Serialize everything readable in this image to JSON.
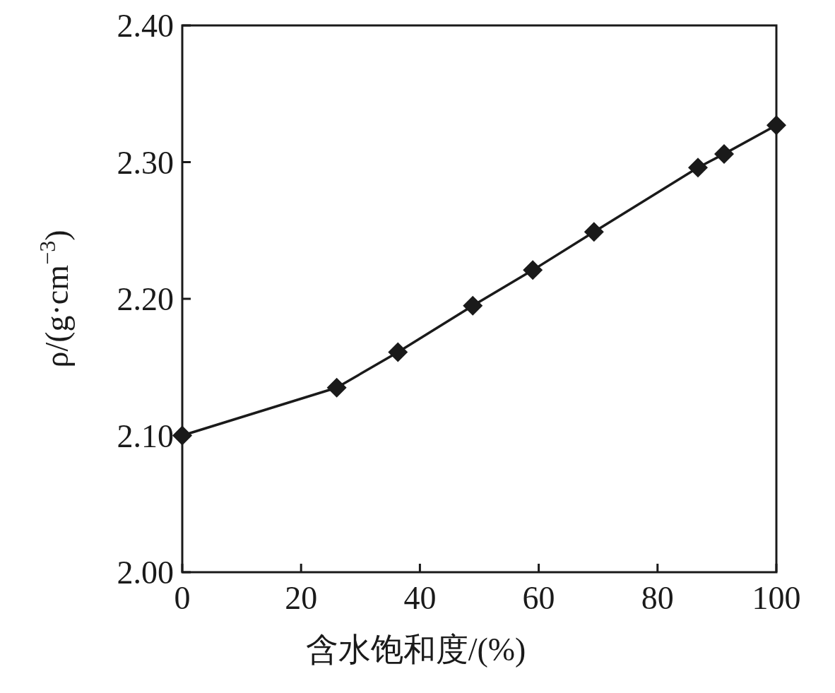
{
  "chart_data": {
    "type": "line",
    "xlabel": "含水饱和度/(%)",
    "ylabel": "ρ/(g·cm$^{−3}$)",
    "x": [
      0,
      26,
      36.3,
      48.9,
      59,
      69.3,
      86.8,
      91.2,
      100
    ],
    "series": [
      {
        "color": "#1a1a1a",
        "values": [
          2.1,
          2.135,
          2.161,
          2.195,
          2.221,
          2.249,
          2.296,
          2.306,
          2.327
        ]
      }
    ],
    "xlim": [
      0,
      100
    ],
    "xticks": [
      0,
      20,
      40,
      60,
      80,
      100
    ],
    "ylim": [
      2.0,
      2.4
    ],
    "yticks": [
      {
        "value": 2.0,
        "label": "2.00"
      },
      {
        "value": 2.1,
        "label": "2.10"
      },
      {
        "value": 2.2,
        "label": "2.20"
      },
      {
        "value": 2.3,
        "label": "2.30"
      },
      {
        "value": 2.4,
        "label": "2.40"
      }
    ],
    "marker": "diamond",
    "line_style": "solid",
    "grid": false
  }
}
